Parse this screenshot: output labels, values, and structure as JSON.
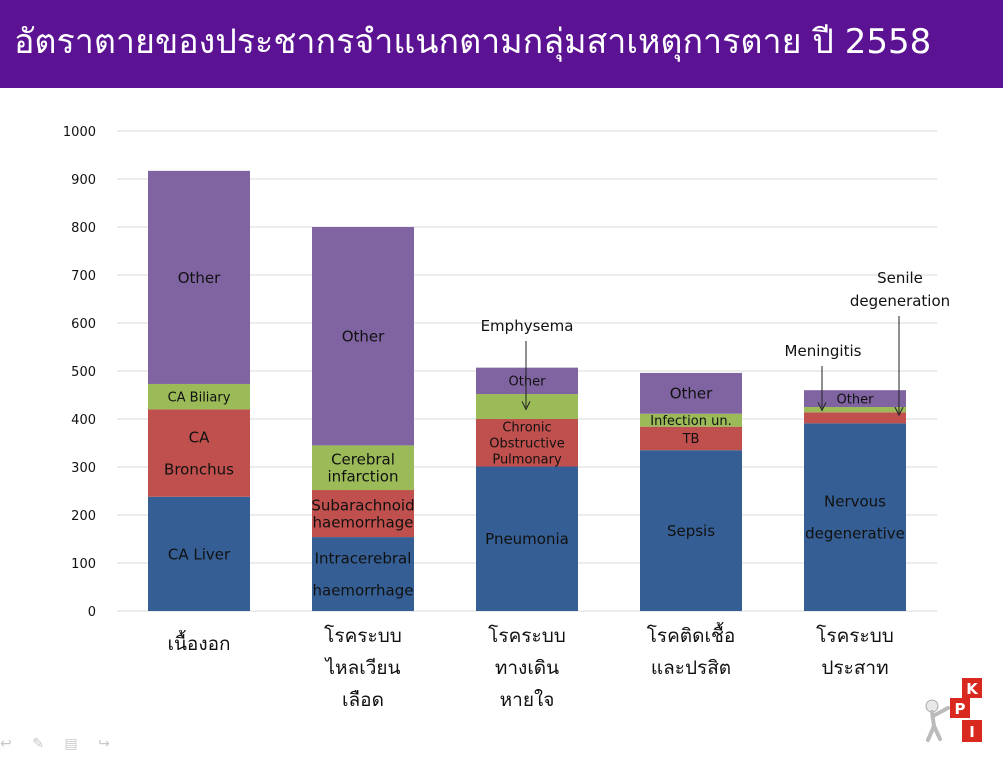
{
  "title": "อัตราตายของประชากรจำแนกตามกลุ่มสาเหตุการตาย ปี 2558",
  "colors": {
    "title_bg": "#5b1293",
    "blue": "#355f94",
    "red": "#c0504d",
    "green": "#9bbb59",
    "purple": "#8064a2"
  },
  "chart_data": {
    "type": "bar",
    "stacked": true,
    "ylim": [
      0,
      1000
    ],
    "yticks": [
      0,
      100,
      200,
      300,
      400,
      500,
      600,
      700,
      800,
      900,
      1000
    ],
    "grid": true,
    "categories": [
      {
        "label_lines": [
          "เนื้องอก"
        ]
      },
      {
        "label_lines": [
          "โรคระบบ",
          "ไหลเวียน",
          "เลือด"
        ]
      },
      {
        "label_lines": [
          "โรคระบบ",
          "ทางเดิน",
          "หายใจ"
        ]
      },
      {
        "label_lines": [
          "โรคติดเชื้อ",
          "และปรสิต"
        ]
      },
      {
        "label_lines": [
          "โรคระบบ",
          "ประสาท"
        ]
      }
    ],
    "stacks": [
      [
        {
          "value": 238,
          "color": "blue",
          "label_lines": [
            "CA Liver"
          ]
        },
        {
          "value": 182,
          "color": "red",
          "label_lines": [
            "CA",
            "Bronchus"
          ]
        },
        {
          "value": 53,
          "color": "green",
          "label_lines": [
            "CA Biliary"
          ]
        },
        {
          "value": 444,
          "color": "purple",
          "label_lines": [
            "Other"
          ]
        }
      ],
      [
        {
          "value": 154,
          "color": "blue",
          "label_lines": [
            "Intracerebral",
            "haemorrhage"
          ]
        },
        {
          "value": 98,
          "color": "red",
          "label_lines": [
            "Subarachnoid",
            "haemorrhage"
          ]
        },
        {
          "value": 93,
          "color": "green",
          "label_lines": [
            "Cerebral",
            "infarction"
          ]
        },
        {
          "value": 455,
          "color": "purple",
          "label_lines": [
            "Other"
          ]
        }
      ],
      [
        {
          "value": 301,
          "color": "blue",
          "label_lines": [
            "Pneumonia"
          ]
        },
        {
          "value": 99,
          "color": "red",
          "label_lines": [
            "Chronic",
            "Obstructive",
            "Pulmonary"
          ]
        },
        {
          "value": 52,
          "color": "green",
          "label_lines": [
            ""
          ]
        },
        {
          "value": 55,
          "color": "purple",
          "label_lines": [
            "Other"
          ]
        }
      ],
      [
        {
          "value": 335,
          "color": "blue",
          "label_lines": [
            "Sepsis"
          ]
        },
        {
          "value": 49,
          "color": "red",
          "label_lines": [
            "TB"
          ]
        },
        {
          "value": 27,
          "color": "green",
          "label_lines": [
            "Infection un."
          ]
        },
        {
          "value": 85,
          "color": "purple",
          "label_lines": [
            "Other"
          ]
        }
      ],
      [
        {
          "value": 391,
          "color": "blue",
          "label_lines": [
            "Nervous",
            "degenerative"
          ]
        },
        {
          "value": 23,
          "color": "red",
          "label_lines": [
            ""
          ]
        },
        {
          "value": 11,
          "color": "green",
          "label_lines": [
            ""
          ]
        },
        {
          "value": 35,
          "color": "purple",
          "label_lines": [
            "Other"
          ]
        }
      ]
    ],
    "annotations": [
      {
        "text_lines": [
          "Emphysema"
        ],
        "category": 2,
        "value": 420
      },
      {
        "text_lines": [
          "Meningitis"
        ],
        "category": 4,
        "value": 418
      },
      {
        "text_lines": [
          "Senile",
          "degeneration"
        ],
        "category": 4,
        "value": 408
      }
    ]
  },
  "nav": [
    "↩",
    "✎",
    "▤",
    "↪"
  ],
  "logo_letters": [
    "K",
    "P",
    "I"
  ]
}
